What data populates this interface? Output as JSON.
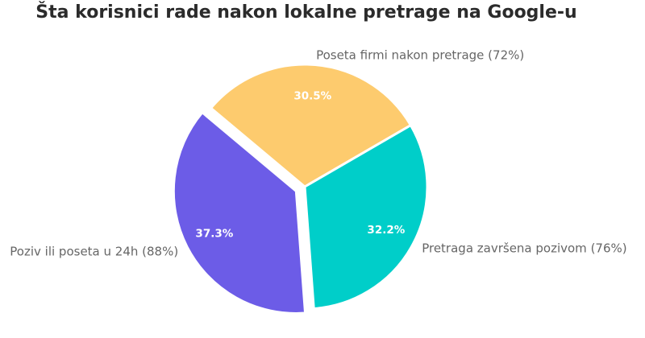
{
  "chart_data": {
    "type": "pie",
    "title": "Šta korisnici rade nakon lokalne pretrage na Google-u",
    "categories": [
      "Poseta firmi nakon pretrage (72%)",
      "Pretraga završena pozivom (76%)",
      "Poziv ili poseta u 24h (88%)"
    ],
    "values": [
      72,
      76,
      88
    ],
    "percent_labels": [
      "30.5%",
      "32.2%",
      "37.3%"
    ],
    "colors": [
      "#fdcb6e",
      "#00cec9",
      "#6c5ce7"
    ],
    "exploded_slice": "Poziv ili poseta u 24h (88%)",
    "start_angle_deg": 140,
    "direction": "clockwise",
    "legend": "none"
  }
}
